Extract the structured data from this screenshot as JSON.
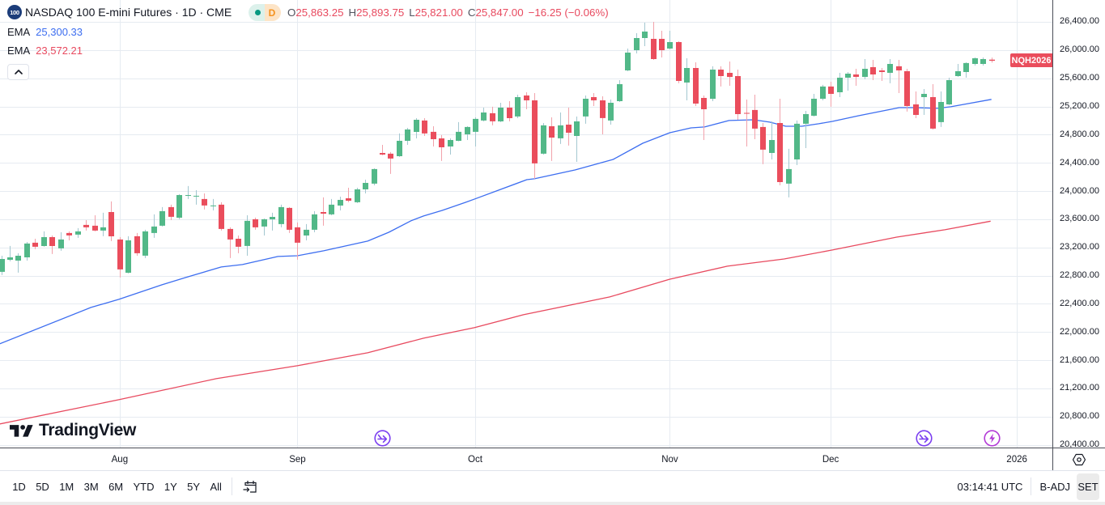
{
  "header": {
    "symbol_logo_text": "100",
    "title": "NASDAQ 100 E-mini Futures · 1D · CME",
    "market_status_color": "#089981",
    "data_badge": "D",
    "ohlc": {
      "open_label": "O",
      "open": "25,863.25",
      "high_label": "H",
      "high": "25,893.75",
      "low_label": "L",
      "low": "25,821.00",
      "close_label": "C",
      "close": "25,847.00",
      "change": "−16.25 (−0.06%)"
    }
  },
  "indicators": [
    {
      "label": "EMA",
      "value": "25,300.33",
      "color": "#3d6ef0"
    },
    {
      "label": "EMA",
      "value": "23,572.21",
      "color": "#e84a5f"
    }
  ],
  "collapse_button": {
    "icon": "chevron-up-icon"
  },
  "price_badge": {
    "label": "NQH2026",
    "color": "#ea4d5c"
  },
  "watermark": {
    "brand": "TradingView"
  },
  "events": [
    {
      "type": "rollover",
      "icon": "rollover-arrow-icon",
      "index": 45,
      "color": "#7b3ff0"
    },
    {
      "type": "rollover",
      "icon": "rollover-arrow-icon",
      "index": 109,
      "color": "#7b3ff0"
    },
    {
      "type": "lightning",
      "icon": "lightning-icon",
      "index": 117,
      "color": "#b23ad6"
    }
  ],
  "toolbar": {
    "ranges": [
      "1D",
      "5D",
      "1M",
      "3M",
      "6M",
      "YTD",
      "1Y",
      "5Y",
      "All"
    ],
    "goto_date_icon": "calendar-arrow-icon",
    "clock": "03:14:41 UTC",
    "adjustment": "B-ADJ",
    "session": "SET"
  },
  "axis_settings_icon": "settings-hex-icon",
  "chart_data": {
    "type": "candlestick",
    "title": "NASDAQ 100 E-mini Futures · 1D · CME",
    "symbol": "NQH2026",
    "interval": "1D",
    "ylim": [
      20360,
      26710
    ],
    "grid": true,
    "legend_position": "top-left",
    "y_ticks": [
      {
        "value": 26400,
        "label": "26,400.00"
      },
      {
        "value": 26000,
        "label": "26,000.00"
      },
      {
        "value": 25600,
        "label": "25,600.00"
      },
      {
        "value": 25200,
        "label": "25,200.00"
      },
      {
        "value": 24800,
        "label": "24,800.00"
      },
      {
        "value": 24400,
        "label": "24,400.00"
      },
      {
        "value": 24000,
        "label": "24,000.00"
      },
      {
        "value": 23600,
        "label": "23,600.00"
      },
      {
        "value": 23200,
        "label": "23,200.00"
      },
      {
        "value": 22800,
        "label": "22,800.00"
      },
      {
        "value": 22400,
        "label": "22,400.00"
      },
      {
        "value": 22000,
        "label": "22,000.00"
      },
      {
        "value": 21600,
        "label": "21,600.00"
      },
      {
        "value": 21200,
        "label": "21,200.00"
      },
      {
        "value": 20800,
        "label": "20,800.00"
      },
      {
        "value": 20400,
        "label": "20,400.00"
      }
    ],
    "x_ticks": [
      {
        "label": "Aug",
        "index": 14
      },
      {
        "label": "Sep",
        "index": 35
      },
      {
        "label": "Oct",
        "index": 56
      },
      {
        "label": "Nov",
        "index": 79
      },
      {
        "label": "Dec",
        "index": 98
      },
      {
        "label": "2026",
        "index": 120
      }
    ],
    "colors": {
      "up": "#52b888",
      "down": "#ea4d5c",
      "up_wick": "#a3c7d0",
      "down_wick": "#f2a2ab",
      "grid": "#e6ebf1"
    },
    "candles": {
      "fields": [
        "open",
        "high",
        "low",
        "close"
      ],
      "values": [
        [
          22853,
          23082,
          22807,
          23036
        ],
        [
          23025,
          23220,
          23002,
          23059
        ],
        [
          23013,
          23117,
          22841,
          23082
        ],
        [
          23059,
          23277,
          23013,
          23255
        ],
        [
          23266,
          23323,
          23174,
          23209
        ],
        [
          23220,
          23427,
          23209,
          23346
        ],
        [
          23346,
          23369,
          23105,
          23220
        ],
        [
          23186,
          23415,
          23151,
          23312
        ],
        [
          23404,
          23427,
          23300,
          23369
        ],
        [
          23381,
          23473,
          23335,
          23427
        ],
        [
          23519,
          23587,
          23438,
          23484
        ],
        [
          23507,
          23656,
          23427,
          23438
        ],
        [
          23438,
          23691,
          23358,
          23484
        ],
        [
          23702,
          23852,
          23289,
          23358
        ],
        [
          23312,
          23346,
          22772,
          22887
        ],
        [
          22841,
          23358,
          22830,
          23300
        ],
        [
          23358,
          23404,
          23082,
          23117
        ],
        [
          23082,
          23450,
          23048,
          23427
        ],
        [
          23404,
          23668,
          23335,
          23496
        ],
        [
          23507,
          23771,
          23496,
          23714
        ],
        [
          23771,
          23806,
          23587,
          23633
        ],
        [
          23622,
          23955,
          23599,
          23943
        ],
        [
          23932,
          24070,
          23886,
          23943
        ],
        [
          23920,
          24012,
          23806,
          23932
        ],
        [
          23886,
          23966,
          23737,
          23794
        ],
        [
          23789,
          23886,
          23725,
          23794
        ],
        [
          23806,
          23840,
          23438,
          23461
        ],
        [
          23461,
          23484,
          23048,
          23312
        ],
        [
          23323,
          23369,
          23117,
          23209
        ],
        [
          23220,
          23656,
          23082,
          23576
        ],
        [
          23599,
          23622,
          23450,
          23484
        ],
        [
          23496,
          23610,
          23369,
          23599
        ],
        [
          23599,
          23691,
          23438,
          23633
        ],
        [
          23530,
          23806,
          23484,
          23771
        ],
        [
          23760,
          23771,
          23404,
          23450
        ],
        [
          23484,
          23553,
          23025,
          23266
        ],
        [
          23369,
          23530,
          23300,
          23450
        ],
        [
          23450,
          23714,
          23415,
          23668
        ],
        [
          23702,
          23909,
          23507,
          23679
        ],
        [
          23668,
          23886,
          23656,
          23806
        ],
        [
          23794,
          23920,
          23725,
          23874
        ],
        [
          23897,
          24046,
          23840,
          23863
        ],
        [
          23840,
          24046,
          23829,
          24023
        ],
        [
          24023,
          24161,
          23966,
          24115
        ],
        [
          24104,
          24322,
          24081,
          24311
        ],
        [
          24540,
          24655,
          24506,
          24517
        ],
        [
          24529,
          24552,
          24242,
          24460
        ],
        [
          24494,
          24816,
          24483,
          24712
        ],
        [
          24712,
          24896,
          24655,
          24873
        ],
        [
          24839,
          25034,
          24747,
          25011
        ],
        [
          25000,
          25034,
          24781,
          24816
        ],
        [
          24839,
          24919,
          24632,
          24735
        ],
        [
          24747,
          24793,
          24426,
          24621
        ],
        [
          24632,
          24747,
          24517,
          24724
        ],
        [
          24712,
          24977,
          24705,
          24839
        ],
        [
          24804,
          24919,
          24724,
          24908
        ],
        [
          24839,
          25045,
          24632,
          25023
        ],
        [
          25000,
          25183,
          24988,
          25114
        ],
        [
          25103,
          25195,
          24931,
          24988
        ],
        [
          24988,
          25252,
          24977,
          25183
        ],
        [
          25183,
          25275,
          24988,
          25034
        ],
        [
          25057,
          25367,
          25034,
          25332
        ],
        [
          25355,
          25401,
          25160,
          25286
        ],
        [
          25286,
          25390,
          24173,
          24391
        ],
        [
          24529,
          24965,
          24517,
          24931
        ],
        [
          24919,
          25045,
          24426,
          24758
        ],
        [
          24747,
          25114,
          24667,
          24931
        ],
        [
          24942,
          25183,
          24644,
          24827
        ],
        [
          24781,
          25057,
          24414,
          24988
        ],
        [
          25057,
          25355,
          24954,
          25309
        ],
        [
          25332,
          25390,
          25206,
          25286
        ],
        [
          25286,
          25344,
          24804,
          25034
        ],
        [
          25000,
          25298,
          24942,
          25252
        ],
        [
          25275,
          25573,
          25263,
          25516
        ],
        [
          25711,
          26021,
          25700,
          25964
        ],
        [
          25998,
          26239,
          25952,
          26170
        ],
        [
          26170,
          26389,
          26056,
          26262
        ],
        [
          26159,
          26400,
          25860,
          25872
        ],
        [
          26159,
          26274,
          25895,
          25998
        ],
        [
          26021,
          26274,
          26010,
          26113
        ],
        [
          26113,
          26124,
          25528,
          25562
        ],
        [
          25539,
          25883,
          25286,
          25746
        ],
        [
          25746,
          25826,
          25206,
          25241
        ],
        [
          25321,
          25355,
          24724,
          25160
        ],
        [
          25309,
          25769,
          25275,
          25723
        ],
        [
          25723,
          25769,
          25482,
          25631
        ],
        [
          25677,
          25837,
          25493,
          25619
        ],
        [
          25631,
          25723,
          25011,
          25091
        ],
        [
          25108,
          25298,
          24632,
          25097
        ],
        [
          25149,
          25367,
          24735,
          24885
        ],
        [
          24908,
          24965,
          24380,
          24586
        ],
        [
          24540,
          24988,
          24448,
          24724
        ],
        [
          24965,
          25309,
          24081,
          24127
        ],
        [
          24104,
          24598,
          23909,
          24311
        ],
        [
          24448,
          25000,
          24368,
          24954
        ],
        [
          24954,
          25137,
          24609,
          25091
        ],
        [
          25068,
          25378,
          25057,
          25309
        ],
        [
          25309,
          25505,
          25286,
          25482
        ],
        [
          25482,
          25550,
          25195,
          25378
        ],
        [
          25401,
          25677,
          25332,
          25608
        ],
        [
          25608,
          25688,
          25424,
          25665
        ],
        [
          25654,
          25734,
          25493,
          25619
        ],
        [
          25619,
          25872,
          25585,
          25734
        ],
        [
          25757,
          25860,
          25573,
          25654
        ],
        [
          25711,
          25746,
          25562,
          25688
        ],
        [
          25677,
          25872,
          25528,
          25803
        ],
        [
          25769,
          25860,
          25390,
          25711
        ],
        [
          25700,
          25734,
          25126,
          25206
        ],
        [
          25229,
          25413,
          25034,
          25080
        ],
        [
          25332,
          25447,
          25080,
          25378
        ],
        [
          25332,
          25516,
          24873,
          24885
        ],
        [
          24977,
          25413,
          24908,
          25263
        ],
        [
          25229,
          25608,
          25218,
          25573
        ],
        [
          25631,
          25803,
          25619,
          25700
        ],
        [
          25688,
          25826,
          25608,
          25815
        ],
        [
          25803,
          25895,
          25780,
          25883
        ],
        [
          25803,
          25895,
          25780,
          25872
        ],
        [
          25863.25,
          25893.75,
          25821.0,
          25847.0
        ]
      ]
    },
    "series": [
      {
        "name": "EMA",
        "key": "ema-fast",
        "color": "#3d6ef0",
        "last_value": 25300.33,
        "points": [
          [
            -0.2,
            21831
          ],
          [
            10.6,
            22348
          ],
          [
            13.9,
            22462
          ],
          [
            19.0,
            22669
          ],
          [
            21.8,
            22772
          ],
          [
            26.0,
            22922
          ],
          [
            28.5,
            22956
          ],
          [
            32.7,
            23071
          ],
          [
            35.0,
            23082
          ],
          [
            38.1,
            23151
          ],
          [
            43.3,
            23289
          ],
          [
            45.8,
            23415
          ],
          [
            48.4,
            23576
          ],
          [
            49.9,
            23645
          ],
          [
            52.1,
            23725
          ],
          [
            54.9,
            23840
          ],
          [
            56.0,
            23889
          ],
          [
            62.1,
            24161
          ],
          [
            63.0,
            24173
          ],
          [
            67.8,
            24299
          ],
          [
            72.3,
            24448
          ],
          [
            75.8,
            24678
          ],
          [
            79.0,
            24827
          ],
          [
            81.5,
            24896
          ],
          [
            83.1,
            24908
          ],
          [
            86.0,
            25000
          ],
          [
            88.9,
            25011
          ],
          [
            90.8,
            24977
          ],
          [
            92.7,
            24919
          ],
          [
            94.6,
            24919
          ],
          [
            96.6,
            24954
          ],
          [
            98.2,
            24988
          ],
          [
            101.3,
            25068
          ],
          [
            106.1,
            25183
          ],
          [
            108.0,
            25183
          ],
          [
            110.6,
            25172
          ],
          [
            112.2,
            25195
          ],
          [
            117.0,
            25300.33
          ]
        ]
      },
      {
        "name": "EMA",
        "key": "ema-slow",
        "color": "#e84a5f",
        "last_value": 23572.21,
        "points": [
          [
            -0.2,
            20694
          ],
          [
            13.9,
            21039
          ],
          [
            25.4,
            21337
          ],
          [
            35.0,
            21521
          ],
          [
            38.1,
            21590
          ],
          [
            43.3,
            21705
          ],
          [
            49.9,
            21911
          ],
          [
            55.9,
            22061
          ],
          [
            61.7,
            22244
          ],
          [
            71.9,
            22497
          ],
          [
            79.0,
            22749
          ],
          [
            85.8,
            22933
          ],
          [
            92.5,
            23036
          ],
          [
            98.2,
            23163
          ],
          [
            105.8,
            23346
          ],
          [
            111.5,
            23450
          ],
          [
            116.9,
            23572.21
          ]
        ]
      }
    ]
  }
}
